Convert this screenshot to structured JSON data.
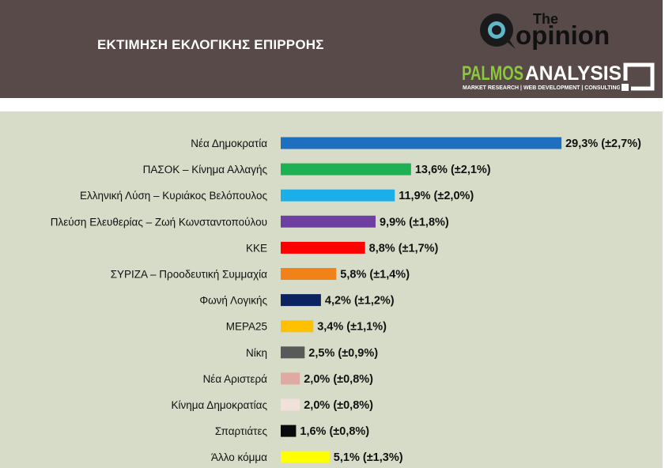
{
  "header": {
    "title": "ΕΚΤΙΜΗΣΗ ΕΚΛΟΓΙΚΗΣ ΕΠΙΡΡΟΗΣ",
    "logo_opinion_small": "The",
    "logo_opinion_main": "opinion",
    "logo_palmos_main_1": "PALMOS",
    "logo_palmos_main_2": "ANALYSIS",
    "logo_palmos_sub": "MARKET RESEARCH | WEB DEVELOPMENT | CONSULTING"
  },
  "colors": {
    "header_bg": "#574a48",
    "plot_bg": "#d6dcc8",
    "palmos_green": "#8dc63f"
  },
  "chart_data": {
    "type": "bar",
    "orientation": "horizontal",
    "title": "ΕΚΤΙΜΗΣΗ ΕΚΛΟΓΙΚΗΣ ΕΠΙΡΡΟΗΣ",
    "categories": [
      "Νέα Δημοκρατία",
      "ΠΑΣΟΚ – Κίνημα Αλλαγής",
      "Ελληνική Λύση – Κυριάκος Βελόπουλος",
      "Πλεύση Ελευθερίας – Ζωή Κωνσταντοπούλου",
      "ΚΚΕ",
      "ΣΥΡΙΖΑ – Προοδευτική Συμμαχία",
      "Φωνή Λογικής",
      "ΜΕΡΑ25",
      "Νίκη",
      "Νέα Αριστερά",
      "Κίνημα Δημοκρατίας",
      "Σπαρτιάτες",
      "Άλλο κόμμα"
    ],
    "values": [
      29.3,
      13.6,
      11.9,
      9.9,
      8.8,
      5.8,
      4.2,
      3.4,
      2.5,
      2.0,
      2.0,
      1.6,
      5.1
    ],
    "errors": [
      2.7,
      2.1,
      2.0,
      1.8,
      1.7,
      1.4,
      1.2,
      1.1,
      0.9,
      0.8,
      0.8,
      0.8,
      1.3
    ],
    "value_labels": [
      "29,3% (±2,7%)",
      "13,6% (±2,1%)",
      "11,9% (±2,0%)",
      "9,9% (±1,8%)",
      "8,8% (±1,7%)",
      "5,8% (±1,4%)",
      "4,2% (±1,2%)",
      "3,4% (±1,1%)",
      "2,5% (±0,9%)",
      "2,0% (±0,8%)",
      "2,0% (±0,8%)",
      "1,6% (±0,8%)",
      "5,1% (±1,3%)"
    ],
    "bar_colors": [
      "#1f6fc0",
      "#1db154",
      "#1caee8",
      "#6f3ea3",
      "#ff0000",
      "#f08219",
      "#0b2460",
      "#ffc000",
      "#595959",
      "#e0aaa2",
      "#f2e0dc",
      "#0a0a0a",
      "#ffff00"
    ],
    "grid": false,
    "legend": "none"
  }
}
